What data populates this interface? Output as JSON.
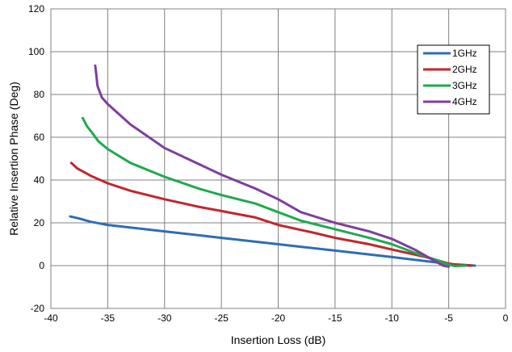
{
  "chart_data": {
    "type": "line",
    "title": "",
    "xlabel": "Insertion Loss (dB)",
    "ylabel": "Relative Insertion Phase (Deg)",
    "xlim": [
      -40,
      0
    ],
    "ylim": [
      -20,
      120
    ],
    "x_ticks": [
      -40,
      -35,
      -30,
      -25,
      -20,
      -15,
      -10,
      -5,
      0
    ],
    "y_ticks": [
      -20,
      0,
      20,
      40,
      60,
      80,
      100,
      120
    ],
    "x_tick_labels": [
      "-40",
      "-35",
      "-30",
      "-25",
      "-20",
      "-15",
      "-10",
      "-5",
      "0"
    ],
    "y_tick_labels": [
      "-20",
      "0",
      "20",
      "40",
      "60",
      "80",
      "100",
      "120"
    ],
    "grid": true,
    "legend_position": "top-right",
    "series": [
      {
        "name": "1GHz",
        "color": "#2E6DB4",
        "x": [
          -38.3,
          -37.5,
          -36.5,
          -35,
          -30,
          -25,
          -20,
          -15,
          -10,
          -5,
          -2.7
        ],
        "y": [
          23,
          22,
          20.5,
          19,
          16,
          13,
          10,
          7,
          4,
          0.8,
          0
        ]
      },
      {
        "name": "2GHz",
        "color": "#C0272D",
        "x": [
          -38.2,
          -37.7,
          -36.5,
          -35,
          -33,
          -30,
          -27,
          -25,
          -22,
          -20,
          -17,
          -15,
          -12,
          -10,
          -7,
          -5,
          -4.2,
          -3
        ],
        "y": [
          48,
          45.5,
          42,
          38.5,
          35,
          31,
          27.5,
          25.5,
          22.5,
          19,
          15.5,
          13,
          10,
          7.5,
          4,
          1,
          0.2,
          0
        ]
      },
      {
        "name": "3GHz",
        "color": "#1EAA4E",
        "x": [
          -37.2,
          -36.8,
          -36.5,
          -35.8,
          -35,
          -33,
          -30,
          -27,
          -25,
          -22,
          -20,
          -18,
          -15,
          -12,
          -10,
          -8,
          -6,
          -5,
          -4.5,
          -3.5
        ],
        "y": [
          69,
          65,
          63,
          58,
          54.5,
          48,
          41.5,
          36,
          33,
          29,
          25,
          21,
          17,
          13,
          10,
          6,
          2.5,
          0.5,
          -0.2,
          0
        ]
      },
      {
        "name": "4GHz",
        "color": "#7E3F9D",
        "x": [
          -36.1,
          -36.0,
          -35.9,
          -35.5,
          -35,
          -33,
          -30,
          -27,
          -25,
          -22,
          -20,
          -18,
          -15,
          -12,
          -10,
          -8,
          -6.5,
          -5.5,
          -5
        ],
        "y": [
          93.5,
          89,
          84,
          78.5,
          75.5,
          66,
          55,
          47.5,
          42.5,
          36,
          31,
          25,
          20,
          16,
          12.5,
          7.5,
          3,
          0,
          -0.5
        ]
      }
    ]
  }
}
